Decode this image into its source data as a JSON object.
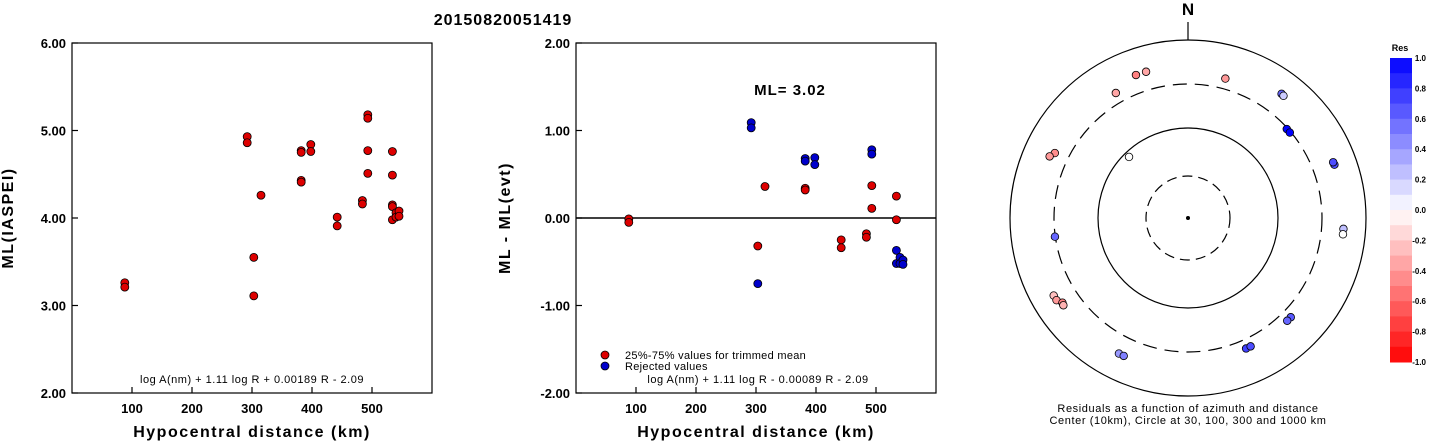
{
  "chart_data": [
    {
      "type": "scatter",
      "title": "20150820051419",
      "xlabel": "Hypocentral distance (km)",
      "ylabel": "ML(IASPEI)",
      "xlim": [
        0,
        600
      ],
      "ylim": [
        2.0,
        6.0
      ],
      "xticks": [
        "100",
        "200",
        "300",
        "400",
        "500"
      ],
      "yticks": [
        "2.00",
        "3.00",
        "4.00",
        "5.00",
        "6.00"
      ],
      "formula": "log A(nm) + 1.11 log R + 0.00189 R - 2.09",
      "series": [
        {
          "color": "#dd0000",
          "points": [
            [
              88,
              3.26
            ],
            [
              88,
              3.21
            ],
            [
              292,
              4.93
            ],
            [
              292,
              4.86
            ],
            [
              303,
              3.55
            ],
            [
              303,
              3.11
            ],
            [
              315,
              4.26
            ],
            [
              382,
              4.77
            ],
            [
              382,
              4.75
            ],
            [
              382,
              4.43
            ],
            [
              382,
              4.41
            ],
            [
              398,
              4.84
            ],
            [
              398,
              4.76
            ],
            [
              442,
              4.01
            ],
            [
              442,
              3.91
            ],
            [
              484,
              4.2
            ],
            [
              484,
              4.16
            ],
            [
              493,
              5.18
            ],
            [
              493,
              5.14
            ],
            [
              493,
              4.77
            ],
            [
              493,
              4.51
            ],
            [
              534,
              4.76
            ],
            [
              534,
              4.49
            ],
            [
              534,
              4.15
            ],
            [
              534,
              4.13
            ],
            [
              534,
              3.98
            ],
            [
              540,
              4.06
            ],
            [
              540,
              4.01
            ],
            [
              545,
              4.08
            ],
            [
              545,
              4.02
            ]
          ]
        }
      ]
    },
    {
      "type": "scatter",
      "xlabel": "Hypocentral distance (km)",
      "ylabel": "ML - ML(evt)",
      "xlim": [
        0,
        600
      ],
      "ylim": [
        -2.0,
        2.0
      ],
      "xticks": [
        "100",
        "200",
        "300",
        "400",
        "500"
      ],
      "yticks": [
        "-2.00",
        "-1.00",
        "0.00",
        "1.00",
        "2.00"
      ],
      "annotation": "ML= 3.02",
      "reference_line": 0.0,
      "formula": "log A(nm) + 1.11 log R - 0.00089 R - 2.09",
      "series": [
        {
          "name": "25%-75% values for trimmed mean",
          "color": "#dd0000",
          "points": [
            [
              88,
              -0.01
            ],
            [
              88,
              -0.05
            ],
            [
              303,
              -0.32
            ],
            [
              315,
              0.36
            ],
            [
              382,
              0.34
            ],
            [
              382,
              0.32
            ],
            [
              442,
              -0.25
            ],
            [
              442,
              -0.34
            ],
            [
              484,
              -0.18
            ],
            [
              484,
              -0.22
            ],
            [
              493,
              0.37
            ],
            [
              493,
              0.11
            ],
            [
              534,
              0.25
            ],
            [
              534,
              -0.02
            ]
          ]
        },
        {
          "name": "Rejected values",
          "color": "#0000cc",
          "points": [
            [
              292,
              1.09
            ],
            [
              292,
              1.03
            ],
            [
              303,
              -0.75
            ],
            [
              382,
              0.68
            ],
            [
              382,
              0.65
            ],
            [
              398,
              0.69
            ],
            [
              398,
              0.61
            ],
            [
              493,
              0.78
            ],
            [
              493,
              0.73
            ],
            [
              534,
              -0.37
            ],
            [
              534,
              -0.52
            ],
            [
              540,
              -0.45
            ],
            [
              540,
              -0.52
            ],
            [
              545,
              -0.48
            ],
            [
              545,
              -0.53
            ]
          ]
        }
      ]
    },
    {
      "type": "polar-scatter",
      "north_label": "N",
      "caption_line1": "Residuals as a function of azimuth and distance",
      "caption_line2": "Center (10km), Circle at 30, 100, 300 and 1000 km",
      "colorbar": {
        "title": "Res",
        "ticks": [
          "1.0",
          "0.8",
          "0.6",
          "0.4",
          "0.2",
          "0.0",
          "-0.2",
          "-0.4",
          "-0.6",
          "-0.8",
          "-1.0"
        ]
      },
      "points": [
        {
          "azimuth": 344,
          "distance": 493,
          "residual": -0.35
        },
        {
          "azimuth": 340,
          "distance": 493,
          "residual": -0.5
        },
        {
          "azimuth": 330,
          "distance": 398,
          "residual": -0.35
        },
        {
          "azimuth": 15,
          "distance": 398,
          "residual": -0.4
        },
        {
          "azimuth": 37,
          "distance": 540,
          "residual": 0.6
        },
        {
          "azimuth": 38,
          "distance": 534,
          "residual": 0.2
        },
        {
          "azimuth": 48,
          "distance": 292,
          "residual": 1.0
        },
        {
          "azimuth": 50,
          "distance": 292,
          "residual": 1.0
        },
        {
          "azimuth": 296,
          "distance": 442,
          "residual": -0.45
        },
        {
          "azimuth": 294,
          "distance": 484,
          "residual": -0.4
        },
        {
          "azimuth": 316,
          "distance": 88,
          "residual": 0.0
        },
        {
          "azimuth": 70,
          "distance": 545,
          "residual": 0.7
        },
        {
          "azimuth": 69,
          "distance": 540,
          "residual": 0.7
        },
        {
          "azimuth": 262,
          "distance": 303,
          "residual": 0.6
        },
        {
          "azimuth": 94,
          "distance": 545,
          "residual": 0.25
        },
        {
          "azimuth": 96,
          "distance": 545,
          "residual": 0.0
        },
        {
          "azimuth": 240,
          "distance": 534,
          "residual": -0.25
        },
        {
          "azimuth": 238,
          "distance": 534,
          "residual": -0.4
        },
        {
          "azimuth": 236,
          "distance": 484,
          "residual": -0.5
        },
        {
          "azimuth": 235,
          "distance": 493,
          "residual": -0.3
        },
        {
          "azimuth": 134,
          "distance": 382,
          "residual": 0.65
        },
        {
          "azimuth": 136,
          "distance": 382,
          "residual": 0.6
        },
        {
          "azimuth": 207,
          "distance": 493,
          "residual": 0.4
        },
        {
          "azimuth": 205,
          "distance": 493,
          "residual": 0.5
        },
        {
          "azimuth": 156,
          "distance": 382,
          "residual": 0.75
        },
        {
          "azimuth": 154,
          "distance": 382,
          "residual": 0.7
        }
      ]
    }
  ]
}
